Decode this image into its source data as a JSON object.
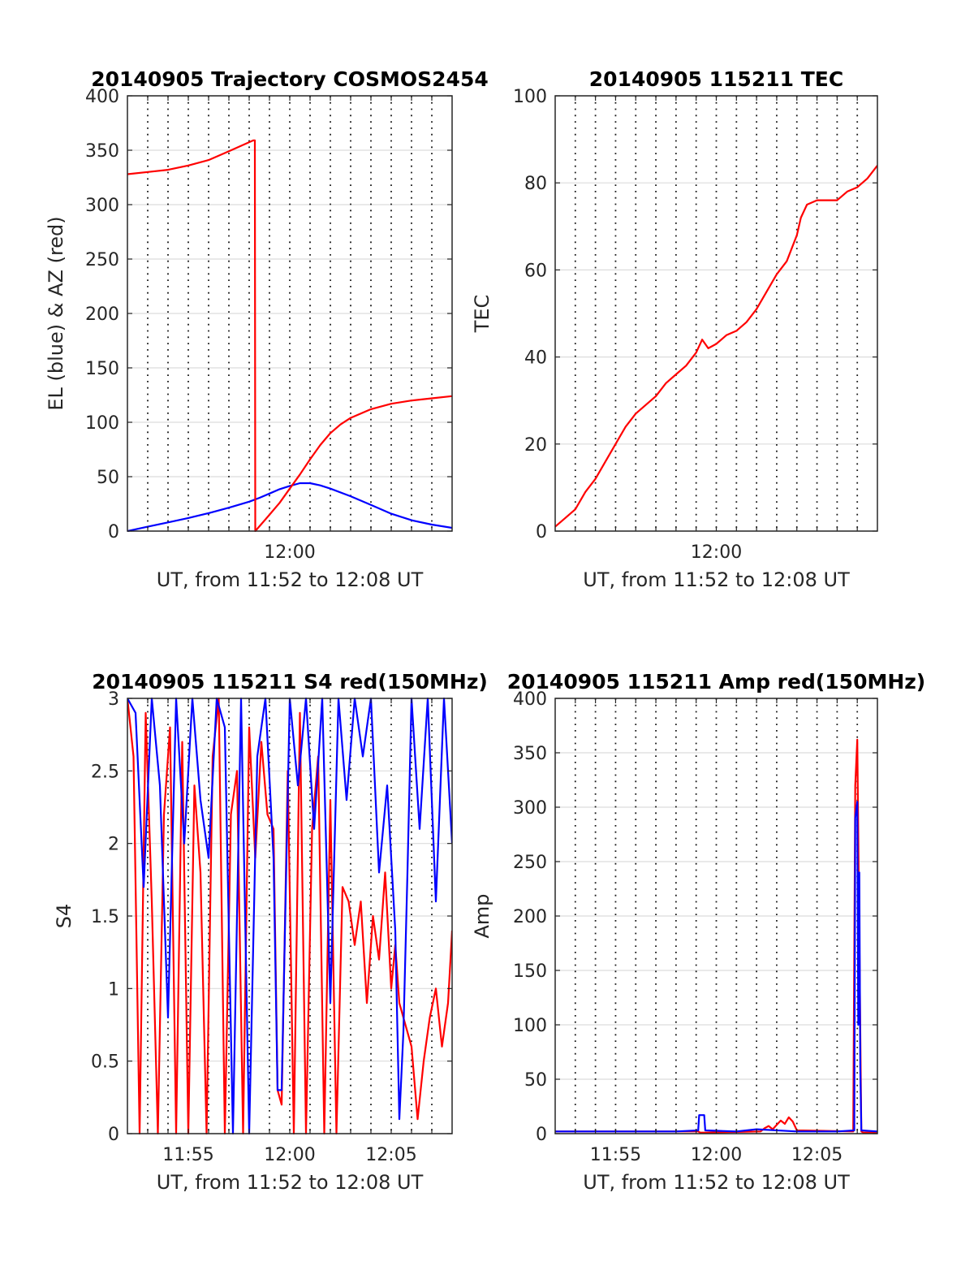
{
  "chart_data": [
    {
      "type": "line",
      "title": "20140905 Trajectory COSMOS2454",
      "xlabel": "UT, from 11:52 to 12:08 UT",
      "ylabel": "EL (blue) & AZ (red)",
      "xlim": [
        0,
        16
      ],
      "ylim": [
        0,
        400
      ],
      "xticks": [
        {
          "x": 8,
          "label": "12:00"
        }
      ],
      "yticks": [
        0,
        50,
        100,
        150,
        200,
        250,
        300,
        350,
        400
      ],
      "grid": true,
      "series": [
        {
          "color": "#0000ff",
          "x": [
            0,
            1,
            2,
            3,
            4,
            5,
            6,
            6.5,
            7,
            7.5,
            8,
            8.5,
            9,
            9.5,
            10,
            11,
            12,
            13,
            14,
            15,
            16
          ],
          "y": [
            0,
            4,
            8,
            12,
            16.5,
            21.5,
            27,
            30.5,
            34.5,
            38.5,
            41.5,
            44,
            44,
            42,
            39,
            32,
            24,
            16,
            10,
            6,
            3
          ]
        },
        {
          "color": "#ff0000",
          "x": [
            0,
            1,
            2,
            3,
            4,
            5,
            6.2,
            6.28,
            6.3,
            7,
            7.5,
            8,
            8.5,
            9,
            9.5,
            10,
            10.5,
            11,
            12,
            13,
            14,
            15,
            16
          ],
          "y": [
            328,
            330,
            332,
            336,
            341,
            349,
            359,
            359,
            0,
            15,
            26,
            39,
            52,
            66,
            79,
            90,
            98,
            104,
            112,
            117,
            120,
            122,
            124
          ]
        }
      ]
    },
    {
      "type": "line",
      "title": "20140905 115211 TEC",
      "xlabel": "UT, from 11:52 to 12:08 UT",
      "ylabel": "TEC",
      "xlim": [
        0,
        16
      ],
      "ylim": [
        0,
        100
      ],
      "xticks": [
        {
          "x": 8,
          "label": "12:00"
        }
      ],
      "yticks": [
        0,
        20,
        40,
        60,
        80,
        100
      ],
      "grid": true,
      "series": [
        {
          "color": "#ff0000",
          "x": [
            0,
            0.5,
            1,
            1.5,
            2,
            2.5,
            3,
            3.5,
            4,
            4.5,
            5,
            5.5,
            6,
            6.5,
            7,
            7.3,
            7.6,
            8,
            8.5,
            9,
            9.5,
            10,
            10.5,
            11,
            11.5,
            12,
            12.2,
            12.5,
            13,
            13.5,
            14,
            14.5,
            15,
            15.5,
            16
          ],
          "y": [
            1,
            3,
            5,
            9,
            12,
            16,
            20,
            24,
            27,
            29,
            31,
            34,
            36,
            38,
            41,
            44,
            42,
            43,
            45,
            46,
            48,
            51,
            55,
            59,
            62,
            68,
            72,
            75,
            76,
            76,
            76,
            78,
            79,
            81,
            84
          ]
        }
      ]
    },
    {
      "type": "line",
      "title": "20140905 115211 S4 red(150MHz)",
      "xlabel": "UT, from 11:52 to 12:08 UT",
      "ylabel": "S4",
      "xlim": [
        0,
        16
      ],
      "ylim": [
        0,
        3
      ],
      "xticks": [
        {
          "x": 3,
          "label": "11:55"
        },
        {
          "x": 8,
          "label": "12:00"
        },
        {
          "x": 13,
          "label": "12:05"
        }
      ],
      "yticks": [
        0,
        0.5,
        1,
        1.5,
        2,
        2.5,
        3
      ],
      "ytick_labels": [
        "0",
        "0.5",
        "1",
        "1.5",
        "2",
        "2.5",
        "3"
      ],
      "grid": true,
      "series": [
        {
          "color": "#ff0000",
          "x": [
            0,
            0.3,
            0.6,
            0.9,
            1.2,
            1.5,
            1.8,
            2.1,
            2.4,
            2.7,
            3,
            3.3,
            3.6,
            3.9,
            4.2,
            4.5,
            4.8,
            5.1,
            5.4,
            5.7,
            6,
            6.3,
            6.6,
            6.9,
            7.2,
            7.4,
            7.6,
            7.9,
            8.2,
            8.5,
            8.8,
            9.1,
            9.4,
            9.7,
            10,
            10.3,
            10.6,
            10.9,
            11.2,
            11.5,
            11.8,
            12.1,
            12.4,
            12.7,
            13,
            13.2,
            13.4,
            13.6,
            13.8,
            14,
            14.3,
            14.6,
            14.9,
            15.2,
            15.5,
            15.8,
            16
          ],
          "y": [
            3,
            2.6,
            0,
            2.9,
            1.6,
            0,
            2.2,
            2.8,
            0,
            2.7,
            0,
            2.4,
            1.8,
            0,
            2.6,
            3,
            0,
            2.2,
            2.5,
            0,
            2.8,
            1.9,
            2.7,
            2.2,
            2.1,
            0.3,
            0.2,
            2.5,
            0,
            2.9,
            0,
            2.1,
            2.6,
            0,
            2.3,
            0,
            1.7,
            1.6,
            1.3,
            1.6,
            0.9,
            1.5,
            1.2,
            1.8,
            1.0,
            1.3,
            0.9,
            0.8,
            0.7,
            0.6,
            0.1,
            0.5,
            0.8,
            1.0,
            0.6,
            0.9,
            1.4
          ]
        },
        {
          "color": "#0000ff",
          "x": [
            0,
            0.4,
            0.8,
            1.2,
            1.6,
            2,
            2.4,
            2.8,
            3.2,
            3.6,
            4,
            4.4,
            4.8,
            5.2,
            5.6,
            6,
            6.4,
            6.8,
            7.2,
            7.4,
            7.6,
            8,
            8.4,
            8.8,
            9.2,
            9.6,
            10,
            10.4,
            10.8,
            11.2,
            11.6,
            12,
            12.4,
            12.8,
            13.2,
            13.4,
            13.6,
            13.8,
            14,
            14.4,
            14.8,
            15.2,
            15.6,
            16
          ],
          "y": [
            3,
            2.9,
            1.7,
            3,
            2.4,
            0.8,
            3,
            2.0,
            3,
            2.3,
            1.9,
            3,
            2.8,
            0,
            3,
            0,
            2.6,
            3,
            1.9,
            0.3,
            0.3,
            3,
            2.4,
            3,
            2.1,
            3,
            0.9,
            3,
            2.3,
            3,
            2.6,
            3,
            1.8,
            2.4,
            1.4,
            0.1,
            0.7,
            1.8,
            3,
            2.1,
            3,
            1.6,
            3,
            2.0
          ]
        }
      ]
    },
    {
      "type": "line",
      "title": "20140905 115211 Amp red(150MHz)",
      "xlabel": "UT, from 11:52 to 12:08 UT",
      "ylabel": "Amp",
      "xlim": [
        0,
        16
      ],
      "ylim": [
        0,
        400
      ],
      "xticks": [
        {
          "x": 3,
          "label": "11:55"
        },
        {
          "x": 8,
          "label": "12:00"
        },
        {
          "x": 13,
          "label": "12:05"
        }
      ],
      "yticks": [
        0,
        50,
        100,
        150,
        200,
        250,
        300,
        350,
        400
      ],
      "grid": true,
      "series": [
        {
          "color": "#ff0000",
          "x": [
            0,
            7,
            7.1,
            7.2,
            7.4,
            7.5,
            10.2,
            10.4,
            10.6,
            10.8,
            11,
            11.2,
            11.4,
            11.6,
            11.8,
            12,
            14.8,
            14.9,
            15,
            15.1,
            15.2,
            15.3,
            16
          ],
          "y": [
            2,
            2,
            2,
            1,
            1,
            1,
            2,
            5,
            7,
            4,
            8,
            12,
            9,
            15,
            11,
            3,
            2,
            320,
            362,
            180,
            2,
            1,
            1
          ]
        },
        {
          "color": "#0000ff",
          "x": [
            0,
            3,
            6,
            7.1,
            7.15,
            7.4,
            7.45,
            9,
            10,
            12,
            14,
            14.85,
            14.9,
            15,
            15.05,
            15.1,
            15.15,
            15.2,
            16
          ],
          "y": [
            2,
            2,
            2,
            3,
            17,
            17,
            3,
            2,
            4,
            2,
            2,
            3,
            290,
            305,
            100,
            240,
            60,
            3,
            2
          ]
        }
      ]
    }
  ]
}
